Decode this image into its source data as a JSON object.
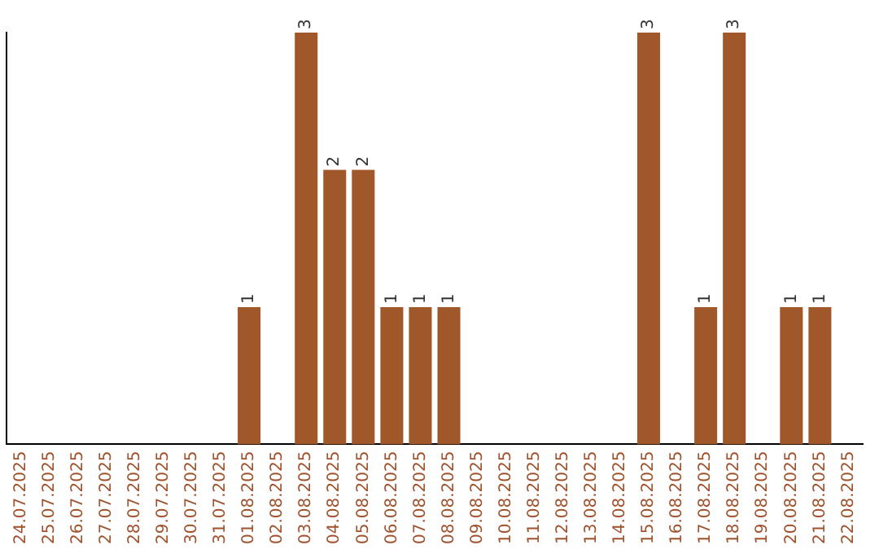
{
  "chart_data": {
    "type": "bar",
    "categories": [
      "24.07.2025",
      "25.07.2025",
      "26.07.2025",
      "27.07.2025",
      "28.07.2025",
      "29.07.2025",
      "30.07.2025",
      "31.07.2025",
      "01.08.2025",
      "02.08.2025",
      "03.08.2025",
      "04.08.2025",
      "05.08.2025",
      "06.08.2025",
      "07.08.2025",
      "08.08.2025",
      "09.08.2025",
      "10.08.2025",
      "11.08.2025",
      "12.08.2025",
      "13.08.2025",
      "14.08.2025",
      "15.08.2025",
      "16.08.2025",
      "17.08.2025",
      "18.08.2025",
      "19.08.2025",
      "20.08.2025",
      "21.08.2025",
      "22.08.2025"
    ],
    "values": [
      0,
      0,
      0,
      0,
      0,
      0,
      0,
      0,
      1,
      0,
      3,
      2,
      2,
      1,
      1,
      1,
      0,
      0,
      0,
      0,
      0,
      0,
      3,
      0,
      1,
      3,
      0,
      1,
      1,
      0
    ],
    "value_labels": [
      null,
      null,
      null,
      null,
      null,
      null,
      null,
      null,
      "1",
      null,
      "3",
      "2",
      "2",
      "1",
      "1",
      "1",
      null,
      null,
      null,
      null,
      null,
      null,
      "3",
      null,
      "1",
      "3",
      null,
      "1",
      "1",
      null
    ],
    "color": "#a0582a",
    "tick_labels": "x",
    "grid": false,
    "legend": false
  }
}
